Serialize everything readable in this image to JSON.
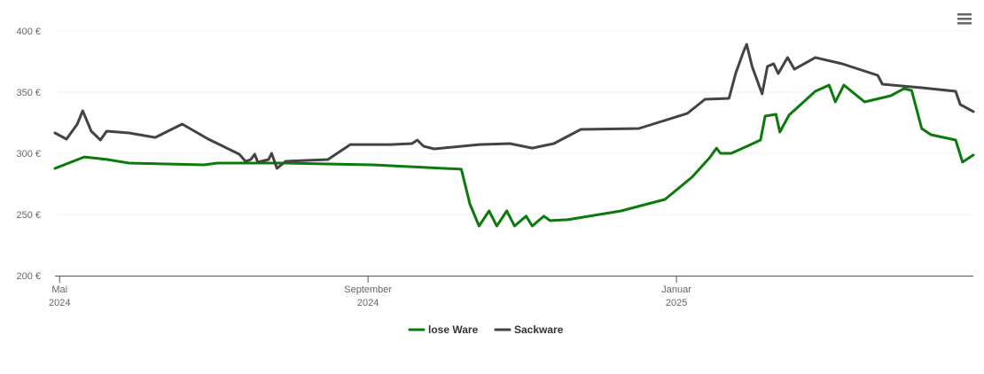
{
  "chart_data": {
    "type": "line",
    "xlim": [
      -0.06,
      11.85
    ],
    "xticks": [
      {
        "value": 0,
        "label": "Mai",
        "sublabel": "2024"
      },
      {
        "value": 4,
        "label": "September",
        "sublabel": "2024"
      },
      {
        "value": 8,
        "label": "Januar",
        "sublabel": "2025"
      }
    ],
    "ylim": [
      200,
      400
    ],
    "yticks": [
      {
        "value": 200,
        "label": "200 €"
      },
      {
        "value": 250,
        "label": "250 €"
      },
      {
        "value": 300,
        "label": "300 €"
      },
      {
        "value": 350,
        "label": "350 €"
      },
      {
        "value": 400,
        "label": "400 €"
      }
    ],
    "grid": true,
    "series": [
      {
        "name": "lose Ware",
        "color": "#0a7a0a",
        "x": [
          -0.06,
          0.32,
          0.61,
          0.9,
          1.87,
          2.05,
          2.91,
          4.06,
          5.21,
          5.32,
          5.44,
          5.57,
          5.67,
          5.8,
          5.9,
          6.05,
          6.13,
          6.28,
          6.36,
          6.59,
          7.28,
          7.85,
          8.2,
          8.43,
          8.52,
          8.57,
          8.71,
          8.94,
          9.09,
          9.15,
          9.29,
          9.34,
          9.46,
          9.8,
          9.98,
          10.06,
          10.17,
          10.44,
          10.78,
          10.95,
          11.05,
          11.18,
          11.3,
          11.62,
          11.71,
          11.85
        ],
        "values": [
          287.7,
          297,
          295,
          292,
          290.6,
          292,
          292,
          290.6,
          287,
          258.7,
          240.6,
          253,
          240.6,
          253,
          240.6,
          248.6,
          240.6,
          248.6,
          245,
          245.7,
          252.9,
          262.3,
          280.4,
          296.4,
          304.3,
          300,
          300,
          306.5,
          310.9,
          330.4,
          331.9,
          317.4,
          331.2,
          350.7,
          355.8,
          342,
          355.8,
          342,
          347.1,
          352.9,
          351.4,
          320.3,
          315.2,
          310.9,
          292.8,
          298.6
        ]
      },
      {
        "name": "Sackware",
        "color": "#434343",
        "x": [
          -0.06,
          0.09,
          0.23,
          0.3,
          0.41,
          0.53,
          0.61,
          0.9,
          1.24,
          1.59,
          1.93,
          2.33,
          2.41,
          2.48,
          2.53,
          2.57,
          2.71,
          2.75,
          2.82,
          2.93,
          3.48,
          3.77,
          4.29,
          4.57,
          4.64,
          4.72,
          4.86,
          5.44,
          5.84,
          6.13,
          6.41,
          6.76,
          7.51,
          8.14,
          8.37,
          8.68,
          8.77,
          8.87,
          8.91,
          8.98,
          9.11,
          9.18,
          9.26,
          9.32,
          9.44,
          9.53,
          9.8,
          10.15,
          10.61,
          10.67,
          11.18,
          11.62,
          11.68,
          11.85
        ],
        "values": [
          316.7,
          311.6,
          323.9,
          334.8,
          318.1,
          310.9,
          318.1,
          316.7,
          313,
          323.9,
          311.6,
          299.3,
          293.5,
          294.9,
          299.3,
          292.8,
          294.9,
          300,
          287.7,
          293.5,
          294.9,
          307.2,
          307.2,
          308,
          310.9,
          305.8,
          303.6,
          307.2,
          308,
          304.3,
          308,
          319.6,
          320.3,
          332.6,
          344.2,
          344.9,
          365.9,
          383.3,
          389.1,
          371,
          348.6,
          371,
          373.2,
          365.2,
          378.3,
          368.8,
          378.3,
          373.2,
          363.8,
          356.5,
          353.6,
          350.7,
          339.9,
          334.1
        ]
      }
    ]
  }
}
